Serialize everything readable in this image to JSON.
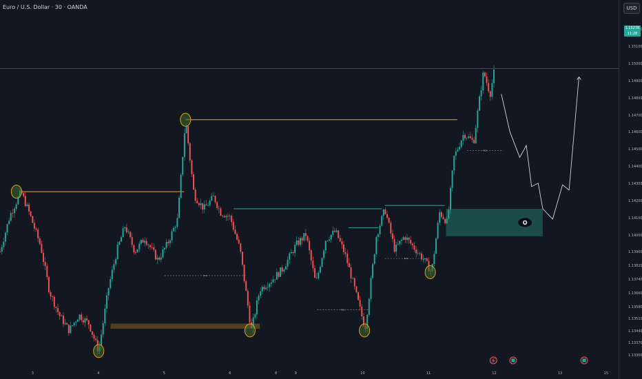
{
  "header": {
    "symbol_title": "Euro / U.S. Dollar · 30 · OANDA",
    "currency_button": "USD"
  },
  "last_price": {
    "value": "1.15278",
    "countdown": "11:28"
  },
  "colors": {
    "background": "#131722",
    "candle_up": "#26a69a",
    "candle_down": "#ef5350",
    "level_line": "#f0a030",
    "teal_line": "#2fa59a",
    "demand_zone": "#1f5f57",
    "support_zone": "#5a4220",
    "circle_fill": "#3c6b2a",
    "circle_stroke": "#e0a020",
    "projection": "#d1d4dc"
  },
  "chart_data": {
    "type": "candlestick",
    "title": "Euro / U.S. Dollar · 30 · OANDA",
    "ylim": [
      1.1325,
      1.1535
    ],
    "price_ticks": [
      "1.15278",
      "1.15200",
      "1.15100",
      "1.15000",
      "1.14900",
      "1.14800",
      "1.14700",
      "1.14600",
      "1.14500",
      "1.14400",
      "1.14300",
      "1.14200",
      "1.14100",
      "1.14000",
      "1.13900",
      "1.13820",
      "1.13740",
      "1.13660",
      "1.13580",
      "1.13510",
      "1.13440",
      "1.13370",
      "1.13300"
    ],
    "price_tick_values": [
      1.15278,
      1.152,
      1.151,
      1.15,
      1.149,
      1.148,
      1.147,
      1.146,
      1.145,
      1.144,
      1.143,
      1.142,
      1.141,
      1.14,
      1.139,
      1.1382,
      1.1374,
      1.1366,
      1.1358,
      1.1351,
      1.1344,
      1.1337,
      1.133
    ],
    "time_ticks": [
      "3",
      "4",
      "5",
      "6",
      "8",
      "9",
      "10",
      "11",
      "12",
      "13",
      "15"
    ],
    "time_tick_x": [
      0.6,
      1.6,
      2.6,
      3.6,
      4.3,
      4.6,
      5.6,
      6.6,
      7.6,
      8.6,
      9.3
    ],
    "x_range": [
      0.1,
      9.45
    ],
    "price_path": [
      [
        0.1,
        1.4205
      ],
      [
        0.25,
        1.4415
      ],
      [
        0.42,
        1.4555
      ],
      [
        0.55,
        1.4425
      ],
      [
        0.72,
        1.4235
      ],
      [
        0.85,
        1.3975
      ],
      [
        1.0,
        1.3835
      ],
      [
        1.15,
        1.3745
      ],
      [
        1.3,
        1.3835
      ],
      [
        1.45,
        1.3785
      ],
      [
        1.6,
        1.3625
      ],
      [
        1.75,
        1.3995
      ],
      [
        1.88,
        1.4215
      ],
      [
        2.0,
        1.4355
      ],
      [
        2.15,
        1.4205
      ],
      [
        2.3,
        1.4285
      ],
      [
        2.5,
        1.4155
      ],
      [
        2.65,
        1.4255
      ],
      [
        2.8,
        1.4395
      ],
      [
        2.92,
        1.4975
      ],
      [
        3.05,
        1.4535
      ],
      [
        3.2,
        1.4455
      ],
      [
        3.35,
        1.4525
      ],
      [
        3.45,
        1.4435
      ],
      [
        3.6,
        1.4405
      ],
      [
        3.75,
        1.4215
      ],
      [
        3.92,
        1.3745
      ],
      [
        4.05,
        1.3985
      ],
      [
        4.22,
        1.4035
      ],
      [
        4.4,
        1.4105
      ],
      [
        4.6,
        1.4245
      ],
      [
        4.75,
        1.4305
      ],
      [
        4.9,
        1.4015
      ],
      [
        5.05,
        1.4275
      ],
      [
        5.2,
        1.4325
      ],
      [
        5.35,
        1.4185
      ],
      [
        5.5,
        1.3975
      ],
      [
        5.65,
        1.3755
      ],
      [
        5.82,
        1.4295
      ],
      [
        5.95,
        1.4455
      ],
      [
        6.1,
        1.4215
      ],
      [
        6.25,
        1.4295
      ],
      [
        6.4,
        1.4225
      ],
      [
        6.55,
        1.4155
      ],
      [
        6.66,
        1.4085
      ],
      [
        6.78,
        1.4435
      ],
      [
        6.9,
        1.4375
      ],
      [
        7.0,
        1.4755
      ],
      [
        7.15,
        1.4895
      ],
      [
        7.3,
        1.4845
      ],
      [
        7.38,
        1.5075
      ],
      [
        7.45,
        1.5255
      ],
      [
        7.55,
        1.5125
      ],
      [
        7.62,
        1.5275
      ]
    ],
    "key_levels": [
      {
        "price": 1.4555,
        "x_from": 0.42,
        "x_to": 2.9,
        "color": "level"
      },
      {
        "price": 1.4975,
        "x_from": 2.92,
        "x_to": 7.05,
        "color": "level"
      },
      {
        "price": 1.4455,
        "x_from": 3.65,
        "x_to": 5.9,
        "color": "teal"
      },
      {
        "price": 1.4345,
        "x_from": 5.4,
        "x_to": 5.85,
        "color": "teal"
      },
      {
        "price": 1.4475,
        "x_from": 5.95,
        "x_to": 6.86,
        "color": "teal"
      }
    ],
    "dashed_levels": [
      {
        "price": 1.4065,
        "x_from": 2.6,
        "x_to": 3.85,
        "label": "EQL"
      },
      {
        "price": 1.3865,
        "x_from": 4.92,
        "x_to": 5.7,
        "label": "EQL"
      },
      {
        "price": 1.4165,
        "x_from": 5.95,
        "x_to": 6.6,
        "label": "EQL"
      },
      {
        "price": 1.4795,
        "x_from": 7.2,
        "x_to": 7.75,
        "label": "EQL"
      }
    ],
    "zones": [
      {
        "type": "demand",
        "price_top": 1.4455,
        "price_bottom": 1.4295,
        "x_from": 6.88,
        "x_to": 8.35
      },
      {
        "type": "support",
        "price_top": 1.3785,
        "price_bottom": 1.3755,
        "x_from": 1.78,
        "x_to": 4.05
      }
    ],
    "marked_points": [
      {
        "x": 0.35,
        "price": 1.4555
      },
      {
        "x": 1.6,
        "price": 1.3625
      },
      {
        "x": 2.92,
        "price": 1.4975
      },
      {
        "x": 3.9,
        "price": 1.3745
      },
      {
        "x": 5.64,
        "price": 1.3745
      },
      {
        "x": 6.64,
        "price": 1.4085
      }
    ],
    "projection_path": [
      [
        7.72,
        1.5125
      ],
      [
        7.85,
        1.4905
      ],
      [
        8.0,
        1.4755
      ],
      [
        8.1,
        1.4825
      ],
      [
        8.18,
        1.4585
      ],
      [
        8.28,
        1.4605
      ],
      [
        8.35,
        1.4455
      ],
      [
        8.5,
        1.4395
      ],
      [
        8.65,
        1.4595
      ],
      [
        8.75,
        1.4565
      ],
      [
        8.9,
        1.5225
      ]
    ],
    "events": [
      {
        "x": 7.6,
        "kind": "lightning-icon"
      },
      {
        "x": 7.9,
        "kind": "flag-icon"
      },
      {
        "x": 8.98,
        "kind": "flag-icon"
      }
    ],
    "eye_marker": {
      "x": 8.08,
      "price": 1.4375
    }
  }
}
